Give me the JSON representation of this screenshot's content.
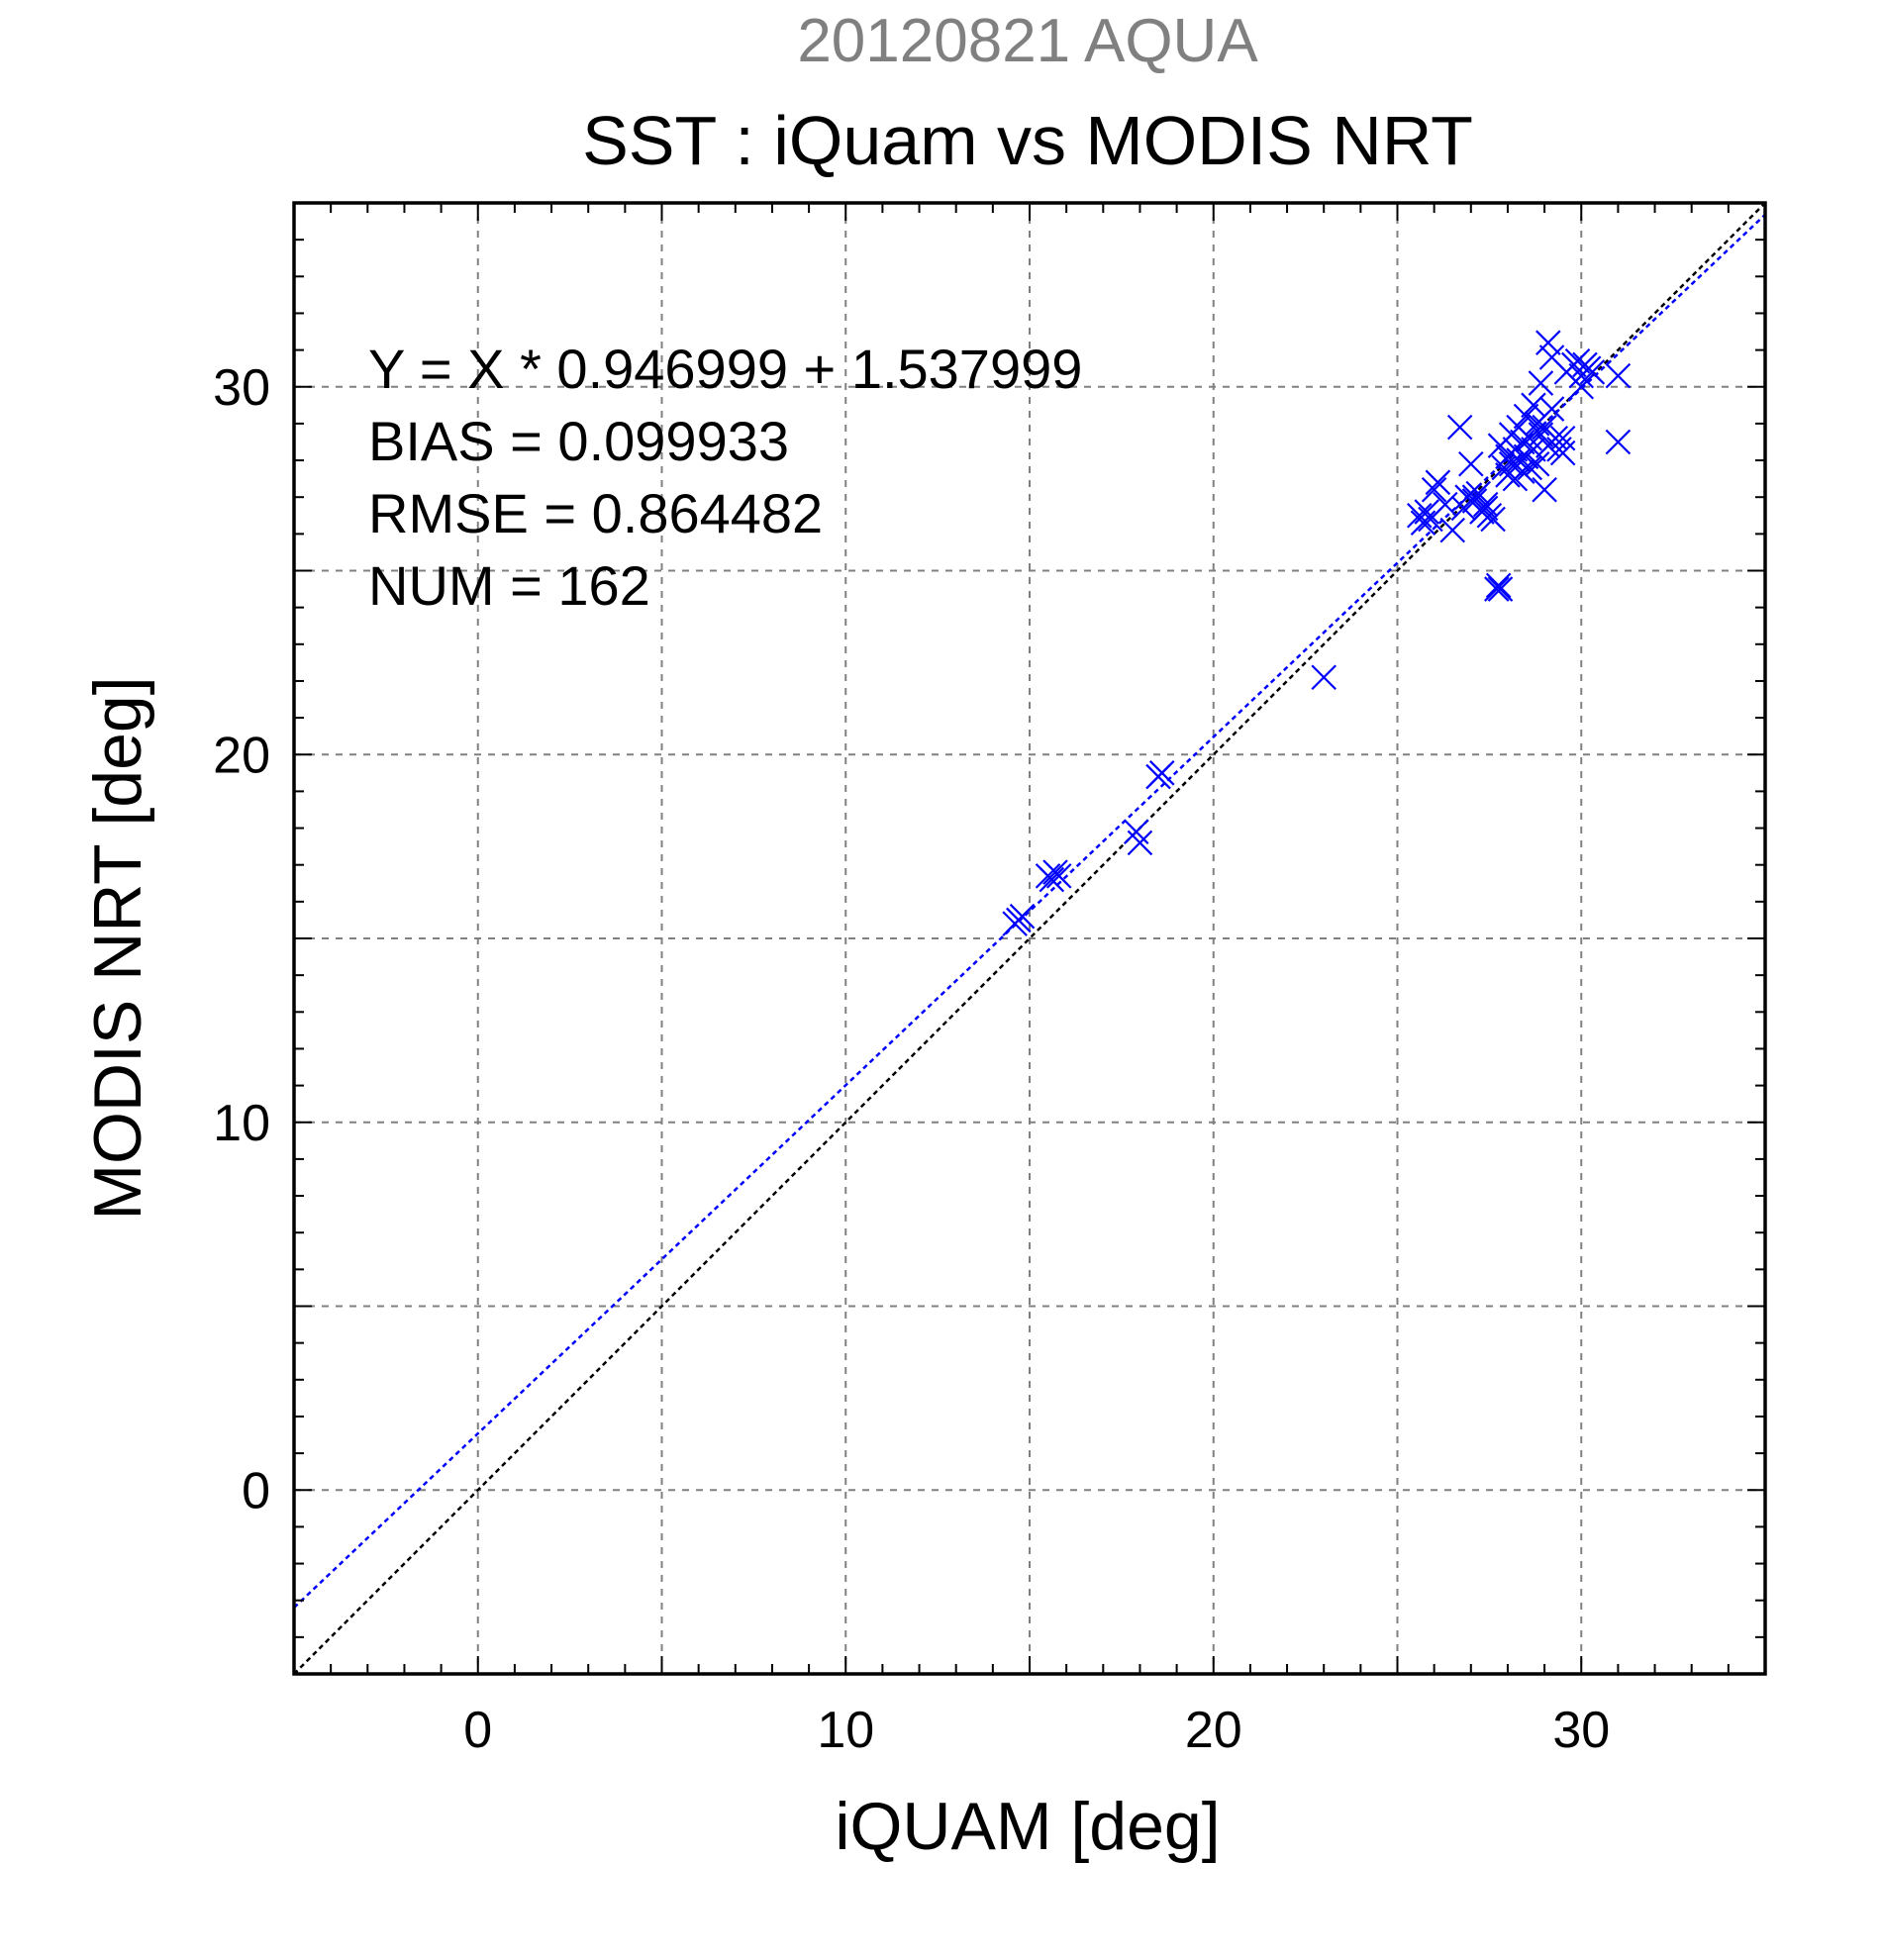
{
  "chart_data": {
    "type": "scatter",
    "supertitle": "20120821 AQUA",
    "title": "SST : iQuam vs MODIS NRT",
    "xlabel": "iQUAM [deg]",
    "ylabel": "MODIS NRT [deg]",
    "xlim": [
      -5,
      35
    ],
    "ylim": [
      -5,
      35
    ],
    "xticks": [
      0,
      10,
      20,
      30
    ],
    "yticks": [
      0,
      10,
      20,
      30
    ],
    "grid": true,
    "colors": {
      "supertitle": "#808080",
      "points": "#0000ff",
      "fit_line": "#0000ff",
      "identity_line": "#000000",
      "grid": "#808080"
    },
    "stats": [
      "Y = X * 0.946999 + 1.537999",
      "BIAS = 0.099933",
      "RMSE = 0.864482",
      "NUM = 162"
    ],
    "fit": {
      "slope": 0.946999,
      "intercept": 1.537999
    },
    "identity": {
      "slope": 1,
      "intercept": 0
    },
    "series": [
      {
        "marker": "x",
        "points": [
          [
            14.7,
            15.5
          ],
          [
            14.8,
            15.6
          ],
          [
            14.6,
            15.4
          ],
          [
            15.5,
            16.7
          ],
          [
            15.7,
            16.8
          ],
          [
            15.6,
            16.6
          ],
          [
            15.8,
            16.7
          ],
          [
            17.9,
            17.9
          ],
          [
            18.0,
            17.6
          ],
          [
            18.6,
            19.5
          ],
          [
            18.5,
            19.4
          ],
          [
            23.0,
            22.1
          ],
          [
            25.6,
            26.5
          ],
          [
            25.7,
            26.3
          ],
          [
            25.9,
            26.4
          ],
          [
            25.8,
            26.6
          ],
          [
            26.0,
            27.2
          ],
          [
            26.1,
            27.4
          ],
          [
            26.3,
            26.8
          ],
          [
            26.5,
            26.1
          ],
          [
            26.7,
            28.9
          ],
          [
            26.8,
            26.7
          ],
          [
            26.9,
            27.0
          ],
          [
            27.0,
            27.9
          ],
          [
            27.1,
            26.9
          ],
          [
            27.2,
            27.1
          ],
          [
            27.1,
            27.0
          ],
          [
            27.3,
            26.6
          ],
          [
            27.4,
            26.8
          ],
          [
            27.5,
            26.5
          ],
          [
            27.6,
            26.4
          ],
          [
            27.4,
            26.7
          ],
          [
            27.7,
            24.5
          ],
          [
            27.8,
            24.5
          ],
          [
            27.75,
            24.6
          ],
          [
            27.9,
            27.8
          ],
          [
            27.8,
            28.4
          ],
          [
            28.0,
            28.1
          ],
          [
            28.0,
            27.6
          ],
          [
            28.1,
            28.7
          ],
          [
            28.1,
            27.9
          ],
          [
            28.2,
            28.3
          ],
          [
            28.2,
            27.5
          ],
          [
            28.3,
            28.9
          ],
          [
            28.3,
            28.0
          ],
          [
            28.4,
            27.7
          ],
          [
            28.4,
            28.5
          ],
          [
            28.5,
            29.2
          ],
          [
            28.5,
            28.1
          ],
          [
            28.6,
            27.8
          ],
          [
            28.6,
            28.6
          ],
          [
            28.7,
            29.5
          ],
          [
            28.7,
            28.3
          ],
          [
            28.8,
            29.0
          ],
          [
            28.8,
            27.9
          ],
          [
            28.9,
            30.1
          ],
          [
            28.9,
            28.7
          ],
          [
            29.0,
            27.2
          ],
          [
            29.0,
            28.9
          ],
          [
            29.1,
            31.2
          ],
          [
            29.1,
            28.4
          ],
          [
            29.2,
            30.8
          ],
          [
            29.2,
            29.4
          ],
          [
            29.3,
            28.6
          ],
          [
            29.4,
            28.3
          ],
          [
            29.5,
            28.6
          ],
          [
            29.5,
            28.2
          ],
          [
            29.6,
            30.4
          ],
          [
            29.8,
            30.6
          ],
          [
            29.9,
            30.7
          ],
          [
            30.0,
            30.3
          ],
          [
            30.0,
            30.0
          ],
          [
            30.1,
            30.6
          ],
          [
            30.2,
            30.5
          ],
          [
            30.3,
            30.4
          ],
          [
            31.0,
            30.3
          ],
          [
            31.0,
            28.5
          ]
        ]
      }
    ]
  }
}
